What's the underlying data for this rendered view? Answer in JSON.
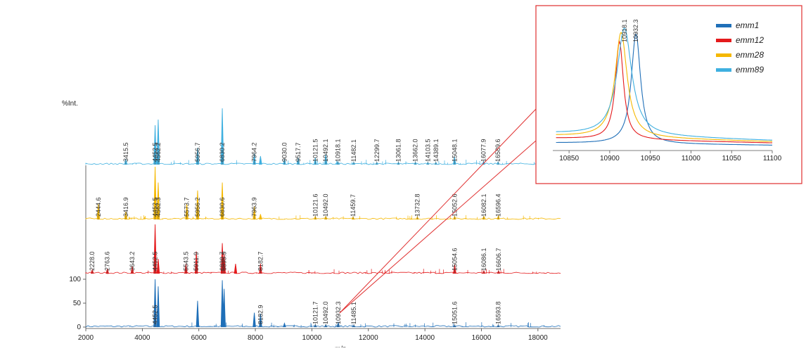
{
  "chart_data": {
    "type": "line",
    "main": {
      "ylabel": "%Int.",
      "xlim": [
        2000,
        18800
      ],
      "xticks": [
        2000,
        4000,
        6000,
        8000,
        10000,
        12000,
        14000,
        16000,
        18000
      ],
      "yticks": [
        0,
        50,
        100
      ],
      "xlabel_partial": "m/z"
    },
    "series": [
      {
        "name": "emm1",
        "color": "#1f6fb8",
        "peaks": [
          [
            4452.5,
            100
          ],
          [
            4562.3,
            85
          ],
          [
            5956.0,
            55
          ],
          [
            6830.7,
            98
          ],
          [
            6895.0,
            80
          ],
          [
            7963.0,
            30
          ],
          [
            8182.9,
            28
          ],
          [
            9030,
            8
          ],
          [
            10121.7,
            5
          ],
          [
            10492.0,
            5
          ],
          [
            10932.3,
            10
          ],
          [
            11485.1,
            4
          ],
          [
            15051.6,
            4
          ],
          [
            16593.8,
            4
          ]
        ],
        "labels": [
          "4452.5",
          "10121.7",
          "10492.0",
          "10932.3",
          "11485.1",
          "8182.9",
          "15051.6",
          "16593.8"
        ]
      },
      {
        "name": "emm12",
        "color": "#e41a1c",
        "peaks": [
          [
            2228.0,
            8
          ],
          [
            2763.6,
            10
          ],
          [
            3643.2,
            15
          ],
          [
            4452.5,
            100
          ],
          [
            4562.3,
            30
          ],
          [
            5543.5,
            20
          ],
          [
            5911.9,
            45
          ],
          [
            6830.7,
            62
          ],
          [
            6895.9,
            40
          ],
          [
            7300,
            20
          ],
          [
            8182.7,
            20
          ],
          [
            15054.6,
            18
          ],
          [
            16086.1,
            6
          ],
          [
            16606.7,
            6
          ]
        ],
        "labels": [
          "2228.0",
          "2763.6",
          "3643.2",
          "4452.5",
          "5543.5",
          "5911.9",
          "6830.7",
          "6895.9",
          "8182.7",
          "15054.6",
          "16086.1",
          "16606.7"
        ]
      },
      {
        "name": "emm28",
        "color": "#f5b800",
        "peaks": [
          [
            2444.6,
            30
          ],
          [
            3416.9,
            15
          ],
          [
            4452.5,
            100
          ],
          [
            4562.3,
            70
          ],
          [
            5573.7,
            30
          ],
          [
            5956.2,
            55
          ],
          [
            6830.6,
            70
          ],
          [
            7963.9,
            25
          ],
          [
            8182,
            10
          ],
          [
            10121.6,
            6
          ],
          [
            10492.0,
            6
          ],
          [
            11459.7,
            5
          ],
          [
            13732.8,
            5
          ],
          [
            15052.6,
            6
          ],
          [
            16082.1,
            6
          ],
          [
            16596.4,
            6
          ]
        ],
        "labels": [
          "2444.6",
          "3416.9",
          "4452.5",
          "4562.3",
          "5573.7",
          "5956.2",
          "6830.6",
          "7963.9",
          "10121.6",
          "10492.0",
          "11459.7",
          "13732.8",
          "15052.6",
          "16082.1",
          "16596.4"
        ]
      },
      {
        "name": "emm89",
        "color": "#3fb0e0",
        "peaks": [
          [
            3415.5,
            10
          ],
          [
            4452.5,
            70
          ],
          [
            4562.2,
            80
          ],
          [
            5956.7,
            30
          ],
          [
            6830.2,
            100
          ],
          [
            7964.2,
            20
          ],
          [
            8182,
            15
          ],
          [
            9030.0,
            10
          ],
          [
            9517.7,
            12
          ],
          [
            10121.5,
            12
          ],
          [
            10492.1,
            18
          ],
          [
            10918.1,
            6
          ],
          [
            11482.1,
            4
          ],
          [
            12299.7,
            4
          ],
          [
            13061.8,
            4
          ],
          [
            13662.0,
            4
          ],
          [
            14103.5,
            4
          ],
          [
            14389.1,
            4
          ],
          [
            15048.1,
            14
          ],
          [
            16077.9,
            6
          ],
          [
            16589.6,
            5
          ]
        ],
        "labels": [
          "3415.5",
          "4452.5",
          "4562.2",
          "5956.7",
          "6830.2",
          "7964.2",
          "9030.0",
          "9517.7",
          "10121.5",
          "10492.1",
          "10918.1",
          "11482.1",
          "12299.7",
          "13061.8",
          "13662.0",
          "14103.5",
          "14389.1",
          "15048.1",
          "16077.9",
          "16589.6"
        ]
      }
    ],
    "inset": {
      "xlim": [
        10830,
        11100
      ],
      "xticks": [
        10850,
        10900,
        10950,
        11000,
        11050,
        11100
      ],
      "legend": [
        "emm1",
        "emm12",
        "emm28",
        "emm89"
      ],
      "legend_position": "top-right",
      "peak_labels": [
        "10918.1",
        "10932.3"
      ],
      "curves": [
        {
          "name": "emm1",
          "center": 10932.3,
          "width": 7,
          "height": 0.92,
          "base": 0.04
        },
        {
          "name": "emm12",
          "center": 10912,
          "width": 6,
          "height": 0.82,
          "base": 0.08
        },
        {
          "name": "emm28",
          "center": 10914,
          "width": 9,
          "height": 0.88,
          "base": 0.1
        },
        {
          "name": "emm89",
          "center": 10918.1,
          "width": 11,
          "height": 0.9,
          "base": 0.12
        }
      ]
    }
  }
}
